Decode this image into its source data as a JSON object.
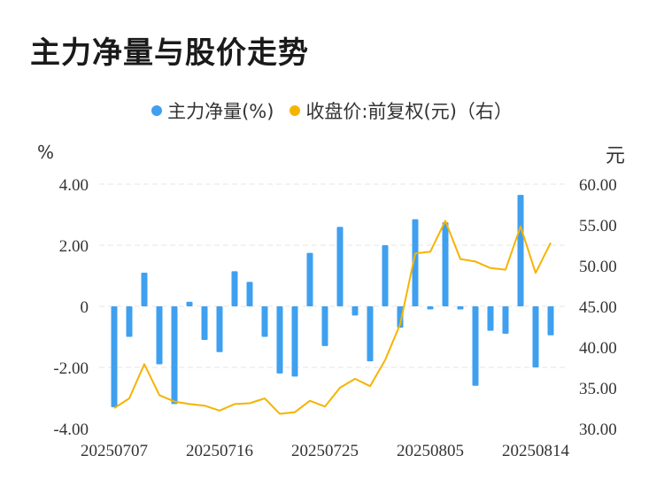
{
  "title": "主力净量与股价走势",
  "legend": {
    "bar_label": "主力净量(%)",
    "line_label": "收盘价:前复权(元)（右）"
  },
  "units": {
    "left": "%",
    "right": "元"
  },
  "colors": {
    "bar": "#3fa0f0",
    "line": "#f5b400",
    "grid": "#e6e6e6"
  },
  "chart_data": {
    "type": "bar+line",
    "x_tick_labels": [
      "20250707",
      "20250716",
      "20250725",
      "20250805",
      "20250814"
    ],
    "left_axis": {
      "ticks": [
        "4.00",
        "2.00",
        "0",
        "-2.00",
        "-4.00"
      ],
      "ylim": [
        -4,
        4
      ]
    },
    "right_axis": {
      "ticks": [
        "60.00",
        "55.00",
        "50.00",
        "45.00",
        "40.00",
        "35.00",
        "30.00"
      ],
      "ylim": [
        30,
        60
      ]
    },
    "series": [
      {
        "name": "主力净量(%)",
        "type": "bar",
        "axis": "left",
        "values": [
          -3.3,
          -1.0,
          1.1,
          -1.9,
          -3.2,
          0.15,
          -1.1,
          -1.5,
          1.15,
          0.8,
          -1.0,
          -2.2,
          -2.3,
          1.75,
          -1.3,
          2.6,
          -0.3,
          -1.8,
          2.0,
          -0.7,
          2.85,
          -0.1,
          2.75,
          -0.1,
          -2.6,
          -0.8,
          -0.9,
          3.65,
          -2.0,
          -0.95
        ]
      },
      {
        "name": "收盘价:前复权(元)（右）",
        "type": "line",
        "axis": "right",
        "values": [
          32.5,
          33.7,
          37.9,
          34.1,
          33.3,
          33.0,
          32.8,
          32.2,
          33.0,
          33.1,
          33.7,
          31.8,
          32.0,
          33.4,
          32.7,
          35.0,
          36.1,
          35.2,
          38.4,
          42.8,
          51.5,
          51.7,
          55.5,
          50.8,
          50.5,
          49.7,
          49.5,
          54.8,
          49.1,
          52.8
        ]
      }
    ]
  }
}
